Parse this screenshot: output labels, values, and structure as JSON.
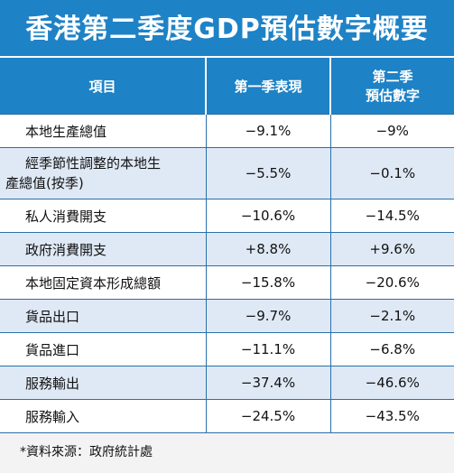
{
  "title": "香港第二季度GDP預估數字概要",
  "headers": {
    "item": "項目",
    "q1_line1": "第一季表現",
    "q2_line1": "第二季",
    "q2_line2": "預估數字"
  },
  "rows": [
    {
      "item": "本地生產總值",
      "q1": "−9.1%",
      "q2": "−9%"
    },
    {
      "item_line1": "經季節性調整的本地生",
      "item_line2": "產總值(按季)",
      "q1": "−5.5%",
      "q2": "−0.1%"
    },
    {
      "item": "私人消費開支",
      "q1": "−10.6%",
      "q2": "−14.5%"
    },
    {
      "item": "政府消費開支",
      "q1": "+8.8%",
      "q2": "+9.6%"
    },
    {
      "item": "本地固定資本形成總額",
      "q1": "−15.8%",
      "q2": "−20.6%"
    },
    {
      "item": "貨品出口",
      "q1": "−9.7%",
      "q2": "−2.1%"
    },
    {
      "item": "貨品進口",
      "q1": "−11.1%",
      "q2": "−6.8%"
    },
    {
      "item": "服務輸出",
      "q1": "−37.4%",
      "q2": "−46.6%"
    },
    {
      "item": "服務輸入",
      "q1": "−24.5%",
      "q2": "−43.5%"
    }
  ],
  "footer": "*資料來源：政府統計處",
  "colors": {
    "header_blue": "#1e82c6",
    "row_stripe": "#dfe9f5"
  }
}
